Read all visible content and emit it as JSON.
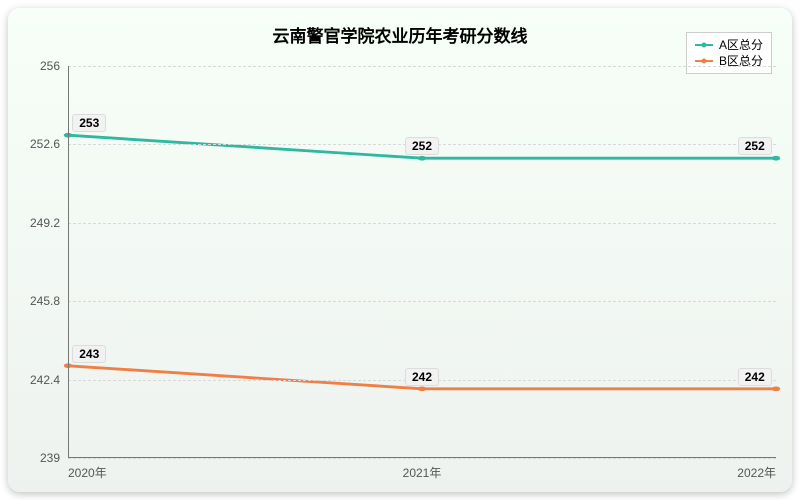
{
  "chart": {
    "title": "云南警官学院农业历年考研分数线",
    "title_fontsize": 17,
    "background_top": "#f7fff8",
    "background_bottom": "#eef2ef",
    "border_radius": 12,
    "x_categories": [
      "2020年",
      "2021年",
      "2022年"
    ],
    "y_ticks": [
      239,
      242.4,
      245.8,
      249.2,
      252.6,
      256
    ],
    "ylim": [
      239,
      256
    ],
    "grid_color": "#d8d8d8",
    "axis_color": "#777777",
    "tick_fontsize": 12,
    "tick_color": "#555555",
    "series": [
      {
        "name": "A区总分",
        "values": [
          253,
          252,
          252
        ],
        "color": "#2fb8a0",
        "line_width": 2,
        "marker": "circle",
        "marker_size": 5
      },
      {
        "name": "B区总分",
        "values": [
          243,
          242,
          242
        ],
        "color": "#ef7f45",
        "line_width": 2,
        "marker": "circle",
        "marker_size": 5
      }
    ],
    "data_label": {
      "bg": "#f2f2f2",
      "border": "#dcdcdc",
      "fontsize": 12,
      "fontweight": "bold"
    },
    "legend": {
      "position": "top-right",
      "border": "#cccccc",
      "bg": "#ffffff",
      "fontsize": 12
    }
  }
}
